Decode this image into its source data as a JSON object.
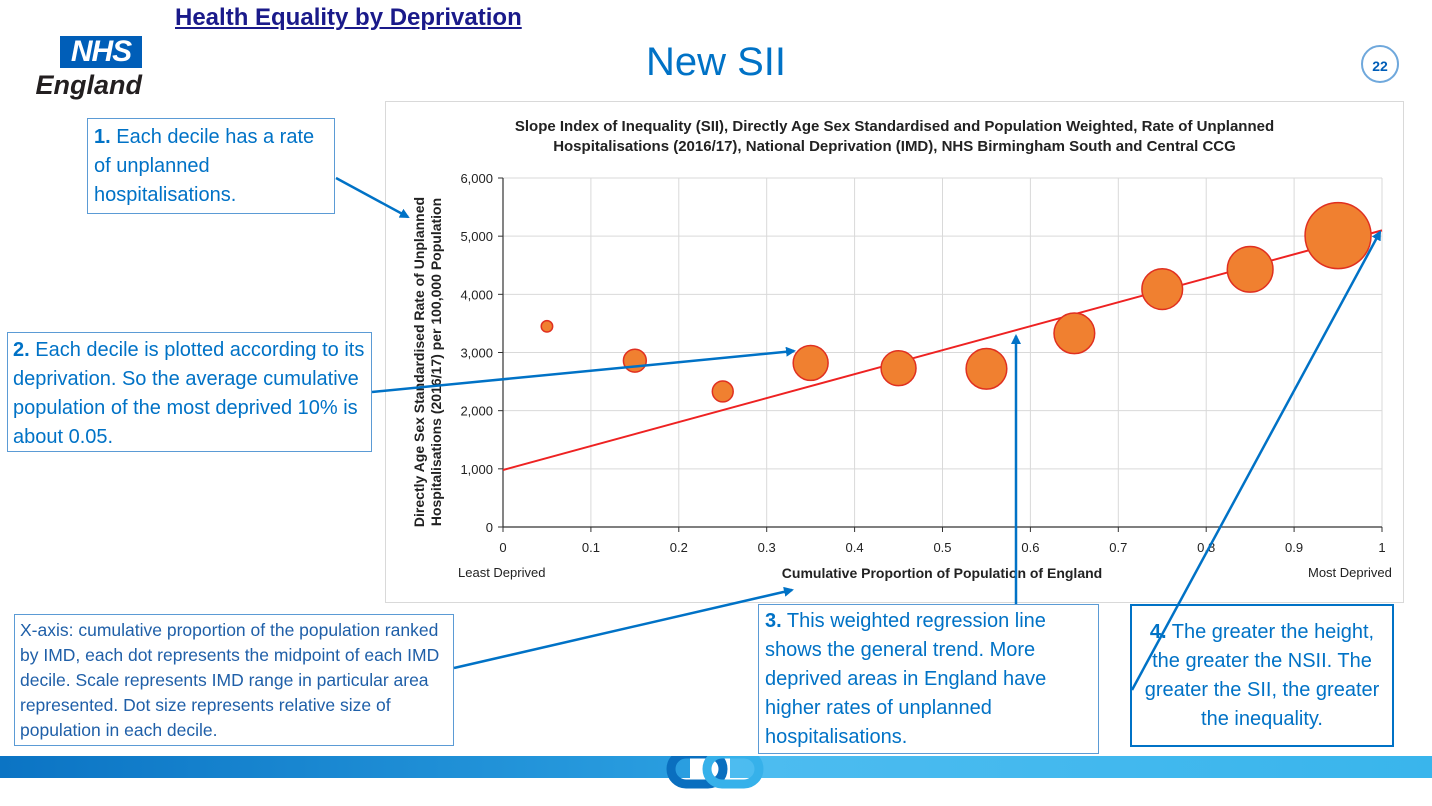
{
  "header": {
    "link_text": "Health Equality by Deprivation"
  },
  "logo": {
    "nhs": "NHS",
    "england": "England"
  },
  "slide": {
    "title": "New SII",
    "page_number": "22"
  },
  "callouts": {
    "c1": {
      "num": "1.",
      "text": " Each decile has a rate of unplanned hospitalisations."
    },
    "c2": {
      "num": "2.",
      "text": " Each decile is plotted according to its deprivation. So the average cumulative population of the most deprived 10% is about 0.05."
    },
    "c3": {
      "num": "3.",
      "text": " This weighted regression line shows the general trend. More deprived areas in England have higher rates of unplanned hospitalisations."
    },
    "c4": {
      "num": "4.",
      "text": " The greater the height, the greater the NSII. The greater the SII, the greater the inequality."
    },
    "c5": {
      "text": "X-axis: cumulative proportion of the population ranked by IMD, each dot represents the midpoint of each IMD decile. Scale represents IMD range in particular area represented. Dot size represents relative size of population in each decile."
    }
  },
  "axis_labels": {
    "least": "Least Deprived",
    "most": "Most Deprived"
  },
  "colors": {
    "accent": "#0072c6",
    "marker": "#f08030",
    "marker_edge": "#e03020",
    "line": "#ee2222"
  },
  "chart_data": {
    "type": "scatter",
    "title_line1": "Slope Index of Inequality (SII), Directly Age Sex Standardised and Population Weighted, Rate of Unplanned",
    "title_line2": "Hospitalisations (2016/17), National Deprivation (IMD), NHS Birmingham South and Central CCG",
    "xlabel": "Cumulative Proportion of Population of England",
    "ylabel_line1": "Directly Age Sex Standardised Rate of Unplanned",
    "ylabel_line2": "Hospitalisations (2016/17) per 100,000 Population",
    "xlim": [
      0,
      1
    ],
    "ylim": [
      0,
      6000
    ],
    "x_ticks": [
      "0",
      "0.1",
      "0.2",
      "0.3",
      "0.4",
      "0.5",
      "0.6",
      "0.7",
      "0.8",
      "0.9",
      "1"
    ],
    "y_ticks": [
      "0",
      "1,000",
      "2,000",
      "3,000",
      "4,000",
      "5,000",
      "6,000"
    ],
    "grid": true,
    "points": [
      {
        "x": 0.05,
        "y": 3450,
        "size": 0.03
      },
      {
        "x": 0.15,
        "y": 2860,
        "size": 0.12
      },
      {
        "x": 0.25,
        "y": 2330,
        "size": 0.1
      },
      {
        "x": 0.35,
        "y": 2820,
        "size": 0.28
      },
      {
        "x": 0.45,
        "y": 2730,
        "size": 0.28
      },
      {
        "x": 0.55,
        "y": 2720,
        "size": 0.38
      },
      {
        "x": 0.65,
        "y": 3330,
        "size": 0.38
      },
      {
        "x": 0.75,
        "y": 4090,
        "size": 0.38
      },
      {
        "x": 0.85,
        "y": 4430,
        "size": 0.48
      },
      {
        "x": 0.95,
        "y": 5010,
        "size": 1.0
      }
    ],
    "regression": {
      "x": [
        0,
        1
      ],
      "y": [
        980,
        5100
      ]
    }
  }
}
